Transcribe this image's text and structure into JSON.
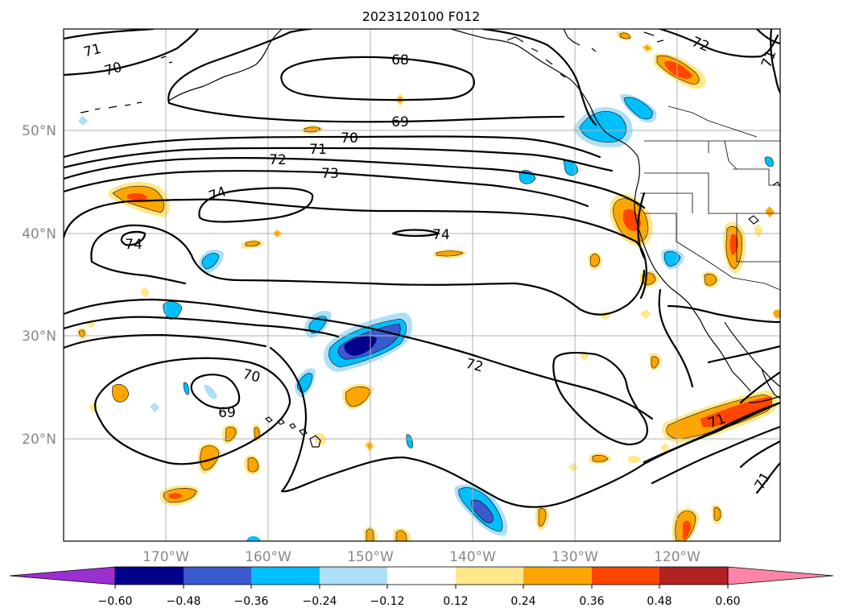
{
  "title": "2023120100 F012",
  "map": {
    "latitude_labels": [
      "50°N",
      "40°N",
      "30°N",
      "20°N"
    ],
    "longitude_labels": [
      "170°W",
      "160°W",
      "150°W",
      "140°W",
      "130°W",
      "120°W"
    ],
    "gridlines": true
  },
  "contours": {
    "label_values": [
      "71",
      "70",
      "68",
      "69",
      "70",
      "71",
      "72",
      "73",
      "74",
      "74",
      "74",
      "72",
      "70",
      "69",
      "71",
      "72",
      "71",
      "71"
    ]
  },
  "colorbar": {
    "ticks": [
      "−0.60",
      "−0.48",
      "−0.36",
      "−0.24",
      "−0.12",
      "0.12",
      "0.24",
      "0.36",
      "0.48",
      "0.60"
    ],
    "colors": {
      "under": "#9b30d0",
      "c1": "#00008b",
      "c2": "#3a5bd0",
      "c3": "#00bfff",
      "c4": "#ade0f7",
      "c5": "#ffffff",
      "c6": "#ffe88a",
      "c7": "#ffa500",
      "c8": "#ff4500",
      "c9": "#b22222",
      "over": "#ff85a8"
    }
  }
}
